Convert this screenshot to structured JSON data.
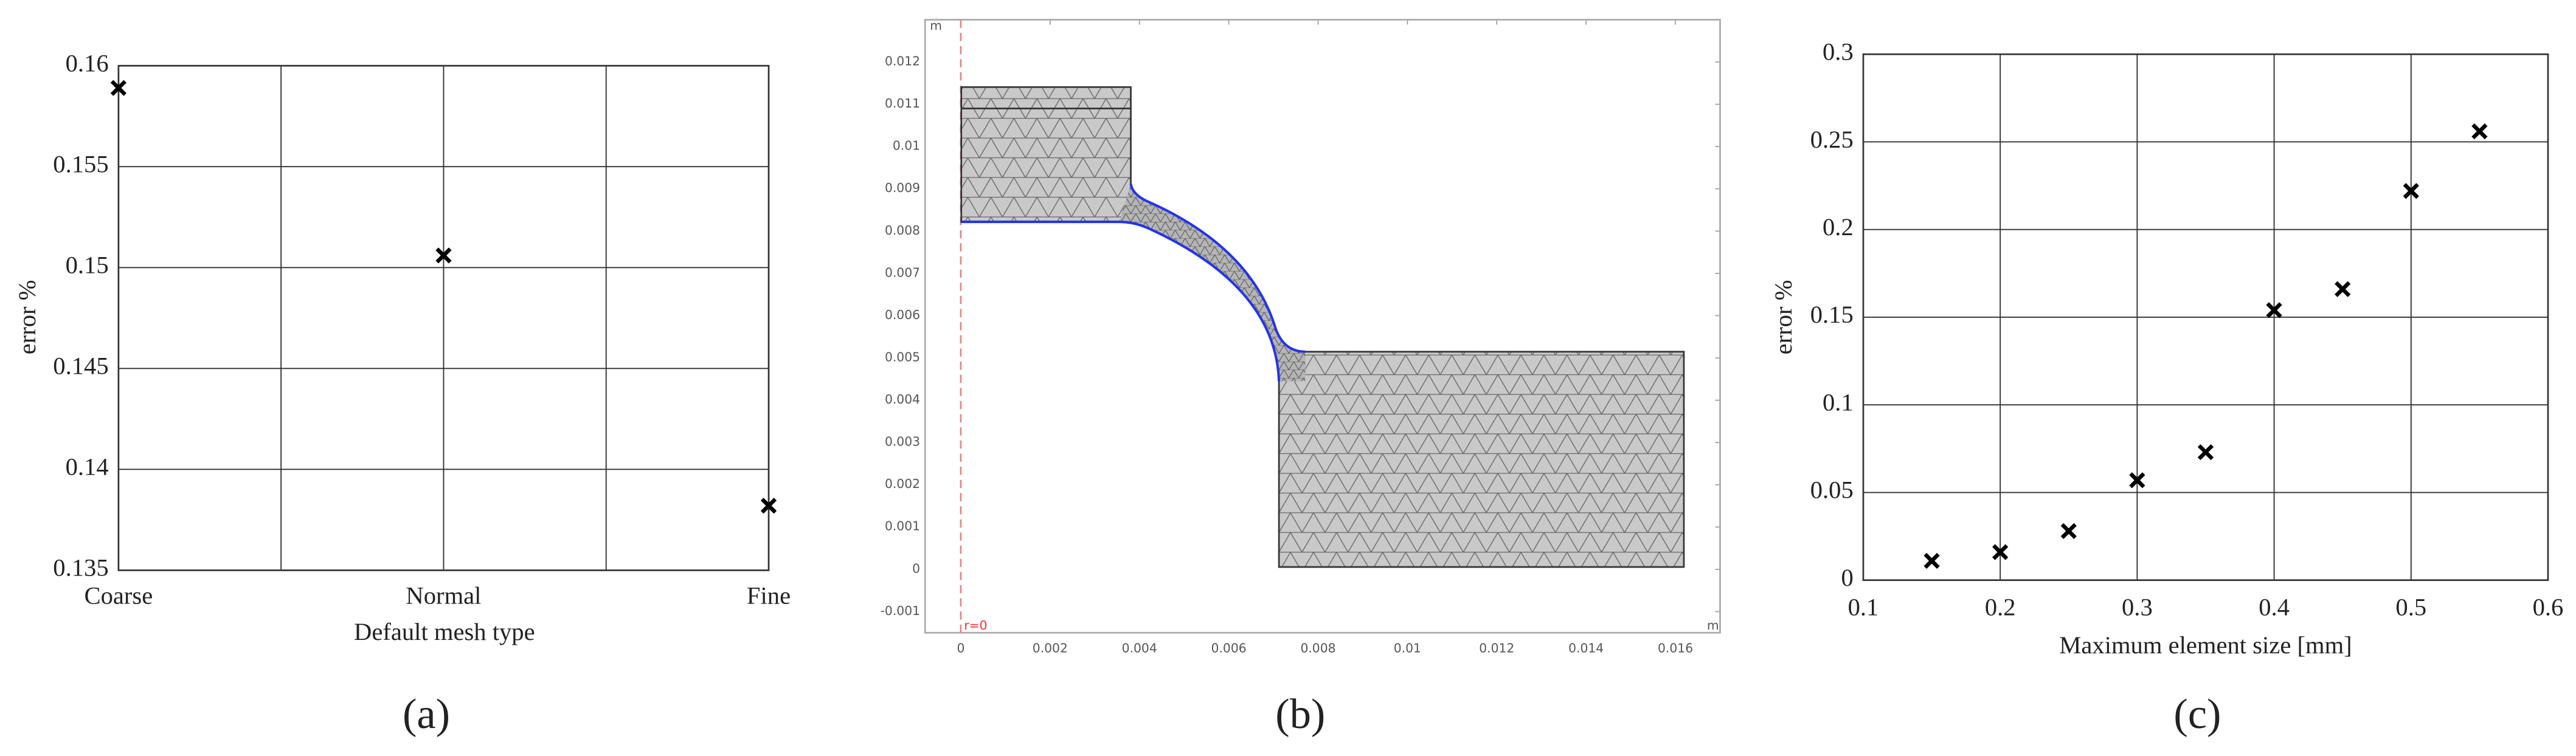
{
  "chart_data": [
    {
      "type": "category-scatter",
      "caption": "(a)",
      "xlabel": "Default mesh type",
      "ylabel": "error %",
      "categories": [
        "Coarse",
        "Normal",
        "Fine"
      ],
      "values": [
        0.1589,
        0.1506,
        0.1382
      ],
      "color": "#000000",
      "ylim": [
        0.135,
        0.16
      ],
      "yticks": [
        0.135,
        0.14,
        0.145,
        0.15,
        0.155,
        0.16
      ],
      "grid": true
    },
    {
      "type": "mesh",
      "caption": "(b)",
      "x_unit": "m",
      "y_unit": "m",
      "annotation": "r=0",
      "xlim": [
        -0.0008,
        0.017
      ],
      "xticks": [
        0,
        0.002,
        0.004,
        0.006,
        0.008,
        0.01,
        0.012,
        0.014,
        0.016
      ],
      "ylim": [
        -0.0015,
        0.013
      ],
      "yticks": [
        -0.001,
        0,
        0.001,
        0.002,
        0.003,
        0.004,
        0.005,
        0.006,
        0.007,
        0.008,
        0.009,
        0.01,
        0.011,
        0.012
      ]
    },
    {
      "type": "scatter",
      "caption": "(c)",
      "xlabel": "Maximum element size [mm]",
      "ylabel": "error %",
      "x": [
        0.15,
        0.2,
        0.25,
        0.3,
        0.35,
        0.4,
        0.45,
        0.5,
        0.55
      ],
      "values": [
        0.011,
        0.016,
        0.028,
        0.057,
        0.073,
        0.154,
        0.166,
        0.222,
        0.256
      ],
      "color": "#000000",
      "xlim": [
        0.1,
        0.6
      ],
      "xticks": [
        0.1,
        0.2,
        0.3,
        0.4,
        0.5,
        0.6
      ],
      "ylim": [
        0,
        0.3
      ],
      "yticks": [
        0,
        0.05,
        0.1,
        0.15,
        0.2,
        0.25,
        0.3
      ],
      "grid": true
    }
  ]
}
